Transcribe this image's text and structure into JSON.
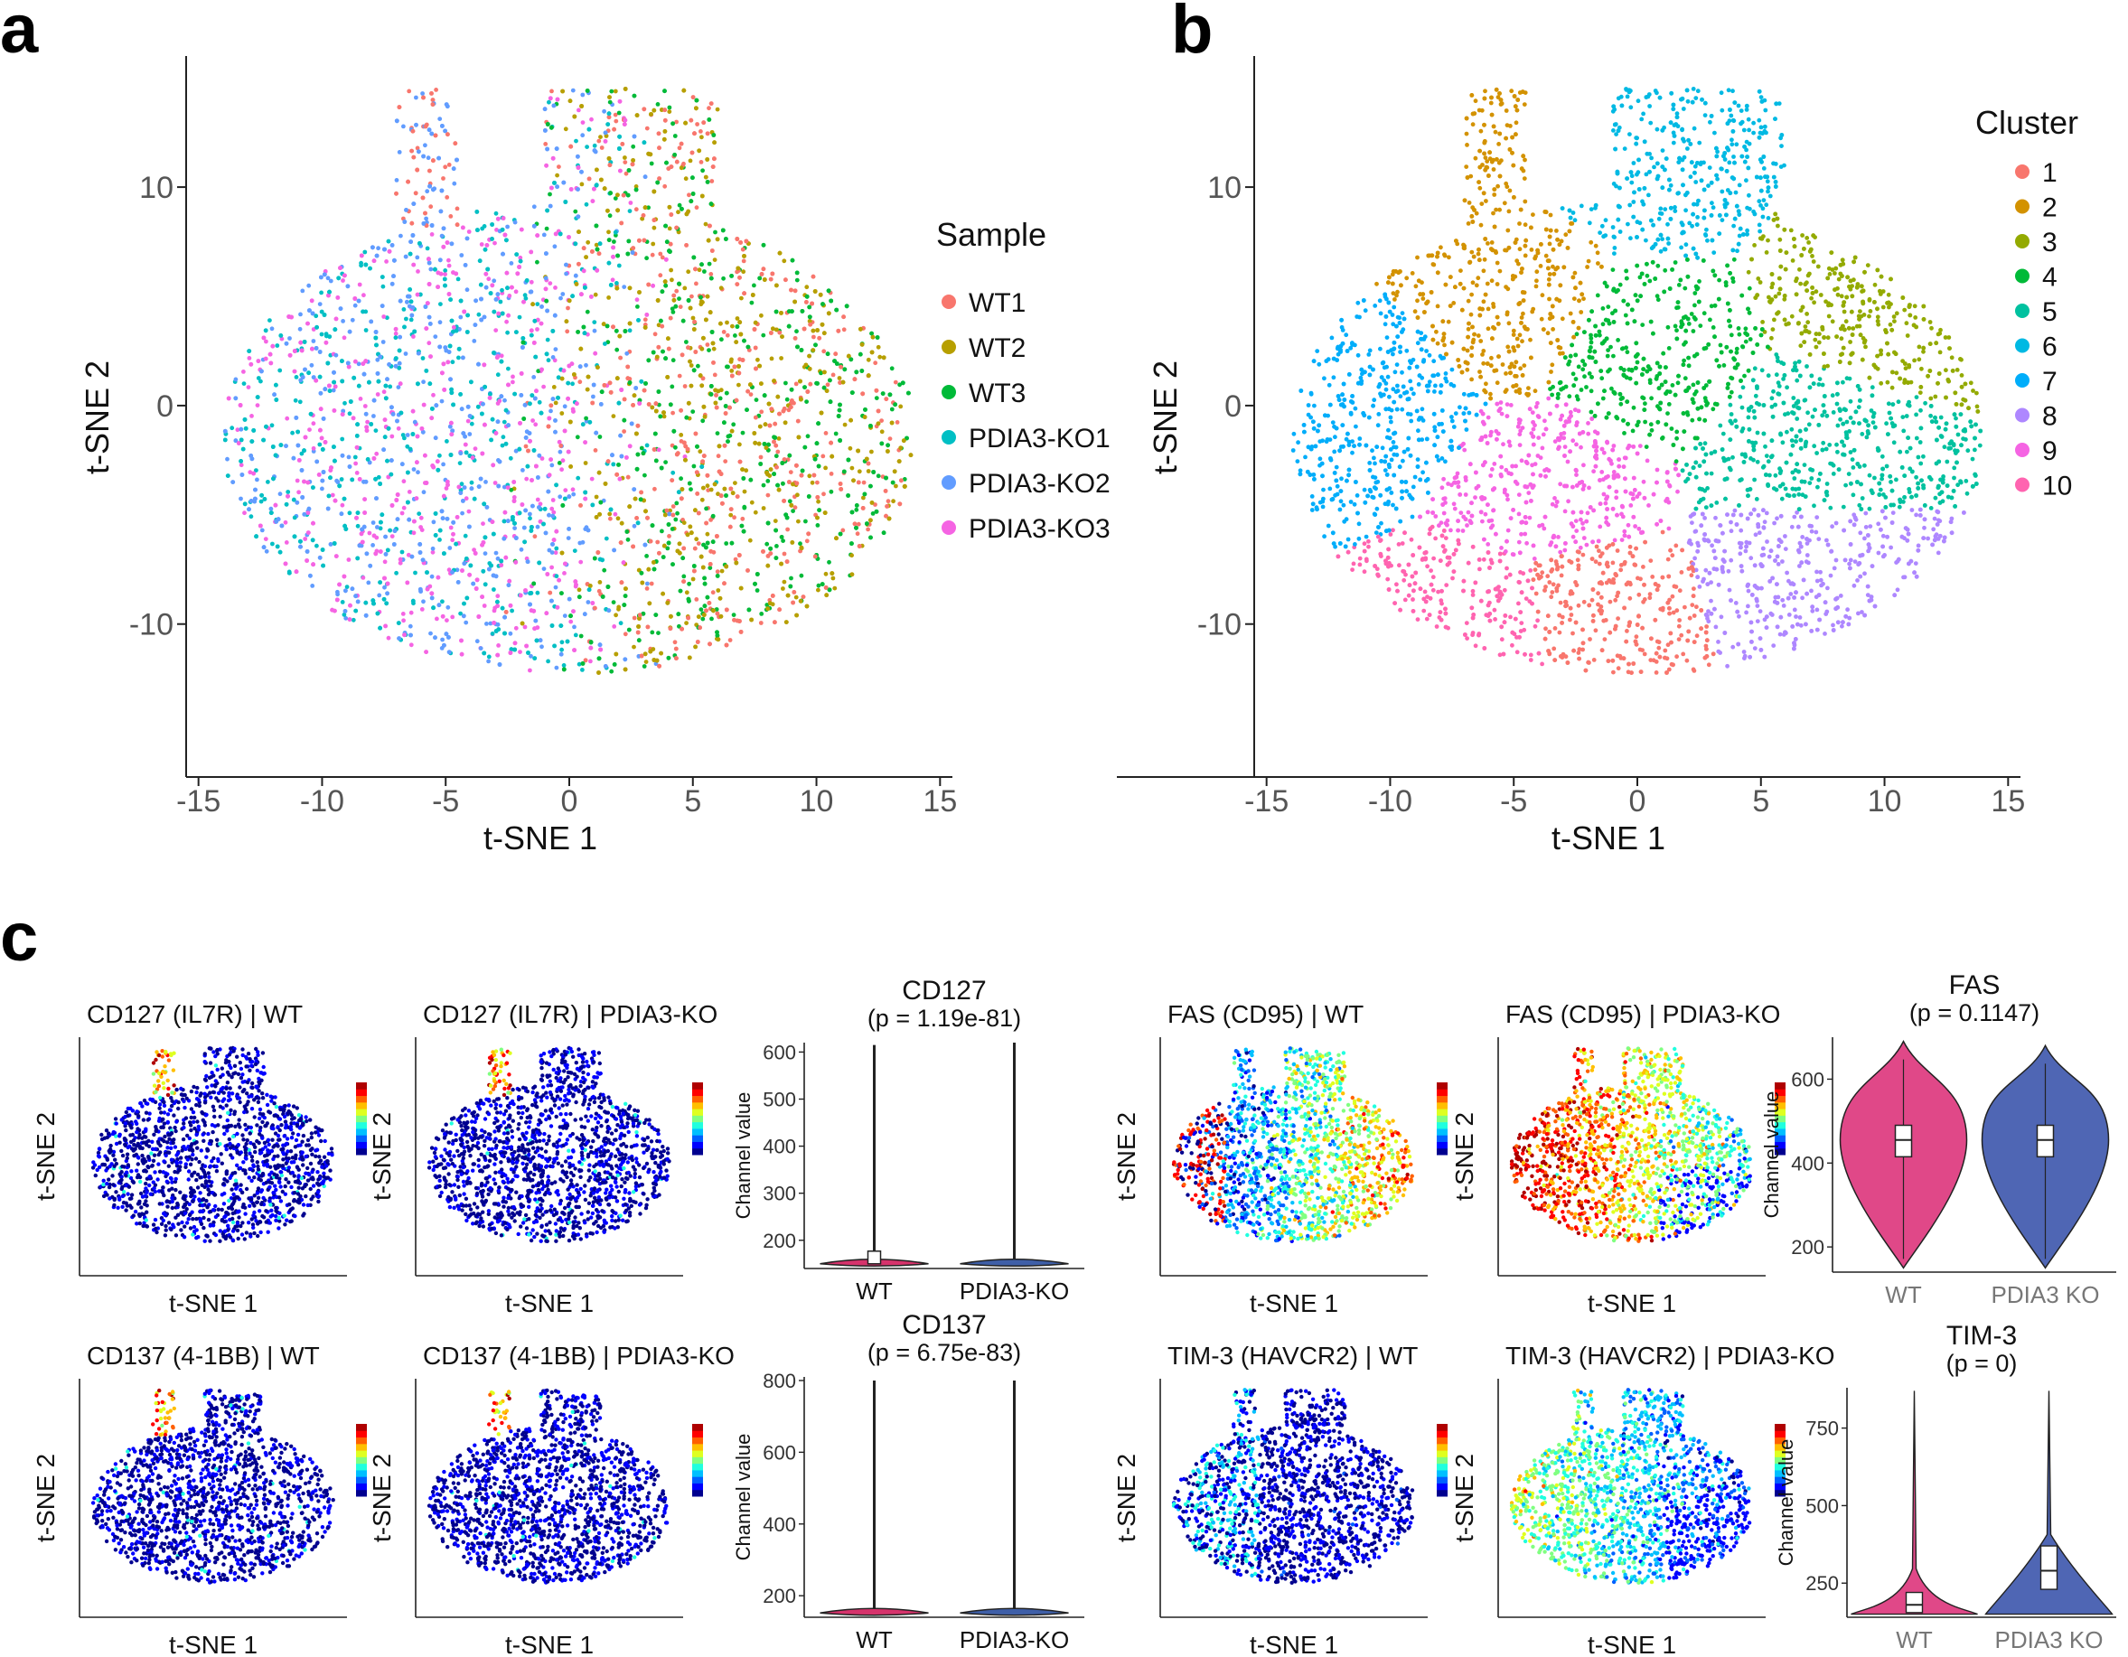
{
  "panels": {
    "a": "a",
    "b": "b",
    "c": "c"
  },
  "tsne_axes": {
    "x_ticks": [
      -15,
      -10,
      -5,
      0,
      5,
      10,
      15
    ],
    "y_ticks": [
      10,
      0,
      -10
    ],
    "x_tick_labels": [
      "-15",
      "-10",
      "-5",
      "0",
      "5",
      "10",
      "15"
    ],
    "y_tick_labels": [
      "10",
      "0",
      "-10"
    ],
    "xlim": [
      -15.5,
      15.5
    ],
    "ylim": [
      -17,
      16
    ],
    "xlabel": "t-SNE 1",
    "ylabel": "t-SNE 2"
  },
  "chart_data": [
    {
      "type": "scatter",
      "id": "a",
      "title": "",
      "xlabel": "t-SNE 1",
      "ylabel": "t-SNE 2",
      "xlim": [
        -15.5,
        15.5
      ],
      "ylim": [
        -17,
        16
      ],
      "legend_title": "Sample",
      "legend_position": "right",
      "series": [
        {
          "name": "WT1",
          "color": "#F8766D"
        },
        {
          "name": "WT2",
          "color": "#B79F00"
        },
        {
          "name": "WT3",
          "color": "#00BA38"
        },
        {
          "name": "PDIA3-KO1",
          "color": "#00BFC4"
        },
        {
          "name": "PDIA3-KO2",
          "color": "#619CFF"
        },
        {
          "name": "PDIA3-KO3",
          "color": "#F564E3"
        }
      ]
    },
    {
      "type": "scatter",
      "id": "b",
      "title": "",
      "xlabel": "t-SNE 1",
      "ylabel": "t-SNE 2",
      "xlim": [
        -15.5,
        15.5
      ],
      "ylim": [
        -17,
        16
      ],
      "legend_title": "Cluster",
      "legend_position": "right",
      "series": [
        {
          "name": "1",
          "color": "#F8766D",
          "center": [
            -2,
            -9.5
          ]
        },
        {
          "name": "2",
          "color": "#D39200",
          "center": [
            -5,
            5
          ]
        },
        {
          "name": "3",
          "color": "#93AA00",
          "center": [
            9.5,
            5
          ]
        },
        {
          "name": "4",
          "color": "#00BA38",
          "center": [
            0.5,
            2.5
          ]
        },
        {
          "name": "5",
          "color": "#00C19F",
          "center": [
            7,
            -2
          ]
        },
        {
          "name": "6",
          "color": "#00B9E3",
          "center": [
            0.5,
            11
          ]
        },
        {
          "name": "7",
          "color": "#00ADFA",
          "center": [
            -11,
            0
          ]
        },
        {
          "name": "8",
          "color": "#AE87FF",
          "center": [
            7,
            -7.5
          ]
        },
        {
          "name": "9",
          "color": "#F564E3",
          "center": [
            -3.5,
            -4
          ]
        },
        {
          "name": "10",
          "color": "#FF64B0",
          "center": [
            -6,
            -10
          ]
        }
      ]
    },
    {
      "type": "scatter",
      "id": "c-feature-maps",
      "maps": [
        {
          "title": "CD127 (IL7R) | WT",
          "marker": "CD127",
          "pattern": "low"
        },
        {
          "title": "CD127 (IL7R) | PDIA3-KO",
          "marker": "CD127",
          "pattern": "low"
        },
        {
          "title": "FAS (CD95) | WT",
          "marker": "FAS",
          "pattern": "fas-wt"
        },
        {
          "title": "FAS (CD95) | PDIA3-KO",
          "marker": "FAS",
          "pattern": "fas-ko"
        },
        {
          "title": "CD137 (4-1BB) | WT",
          "marker": "CD137",
          "pattern": "low"
        },
        {
          "title": "CD137 (4-1BB) | PDIA3-KO",
          "marker": "CD137",
          "pattern": "low"
        },
        {
          "title": "TIM-3 (HAVCR2) | WT",
          "marker": "TIM-3",
          "pattern": "tim-wt"
        },
        {
          "title": "TIM-3 (HAVCR2) | PDIA3-KO",
          "marker": "TIM-3",
          "pattern": "tim-ko"
        }
      ],
      "xlabel": "t-SNE 1",
      "ylabel": "t-SNE 2",
      "color_scale": [
        100,
        700
      ]
    },
    {
      "type": "violin",
      "id": "CD127",
      "title": "CD127",
      "subtitle": "(p = 1.19e-81)",
      "ylabel": "Channel value",
      "ylim": [
        140,
        620
      ],
      "yticks": [
        200,
        300,
        400,
        500,
        600
      ],
      "categories": [
        "WT",
        "PDIA3-KO"
      ],
      "medians": [
        150,
        150
      ],
      "max": [
        615,
        620
      ],
      "colors": [
        "#D6336C",
        "#3F5FA8"
      ]
    },
    {
      "type": "violin",
      "id": "CD137",
      "title": "CD137",
      "subtitle": "(p = 6.75e-83)",
      "ylabel": "Channel value",
      "ylim": [
        140,
        810
      ],
      "yticks": [
        200,
        400,
        600,
        800
      ],
      "categories": [
        "WT",
        "PDIA3-KO"
      ],
      "medians": [
        152,
        152
      ],
      "max": [
        800,
        800
      ],
      "colors": [
        "#D6336C",
        "#3F5FA8"
      ]
    },
    {
      "type": "violin",
      "id": "FAS",
      "title": "FAS",
      "subtitle": "(p = 0.1147)",
      "ylabel": "Channel value",
      "ylim": [
        140,
        700
      ],
      "yticks": [
        200,
        400,
        600
      ],
      "categories": [
        "WT",
        "PDIA3 KO"
      ],
      "medians": [
        455,
        455
      ],
      "q1": [
        415,
        415
      ],
      "q3": [
        490,
        490
      ],
      "min": [
        150,
        150
      ],
      "max": [
        690,
        680
      ],
      "colors": [
        "#E04888",
        "#4F66B4"
      ]
    },
    {
      "type": "violin",
      "id": "TIM-3",
      "title": "TIM-3",
      "subtitle": "(p = 0)",
      "ylabel": "Channel value",
      "ylim": [
        140,
        880
      ],
      "yticks": [
        250,
        500,
        750
      ],
      "categories": [
        "WT",
        "PDIA3 KO"
      ],
      "medians": [
        180,
        290
      ],
      "q1": [
        155,
        230
      ],
      "q3": [
        220,
        370
      ],
      "max": [
        870,
        870
      ],
      "colors": [
        "#E04888",
        "#4F66B4"
      ]
    }
  ]
}
